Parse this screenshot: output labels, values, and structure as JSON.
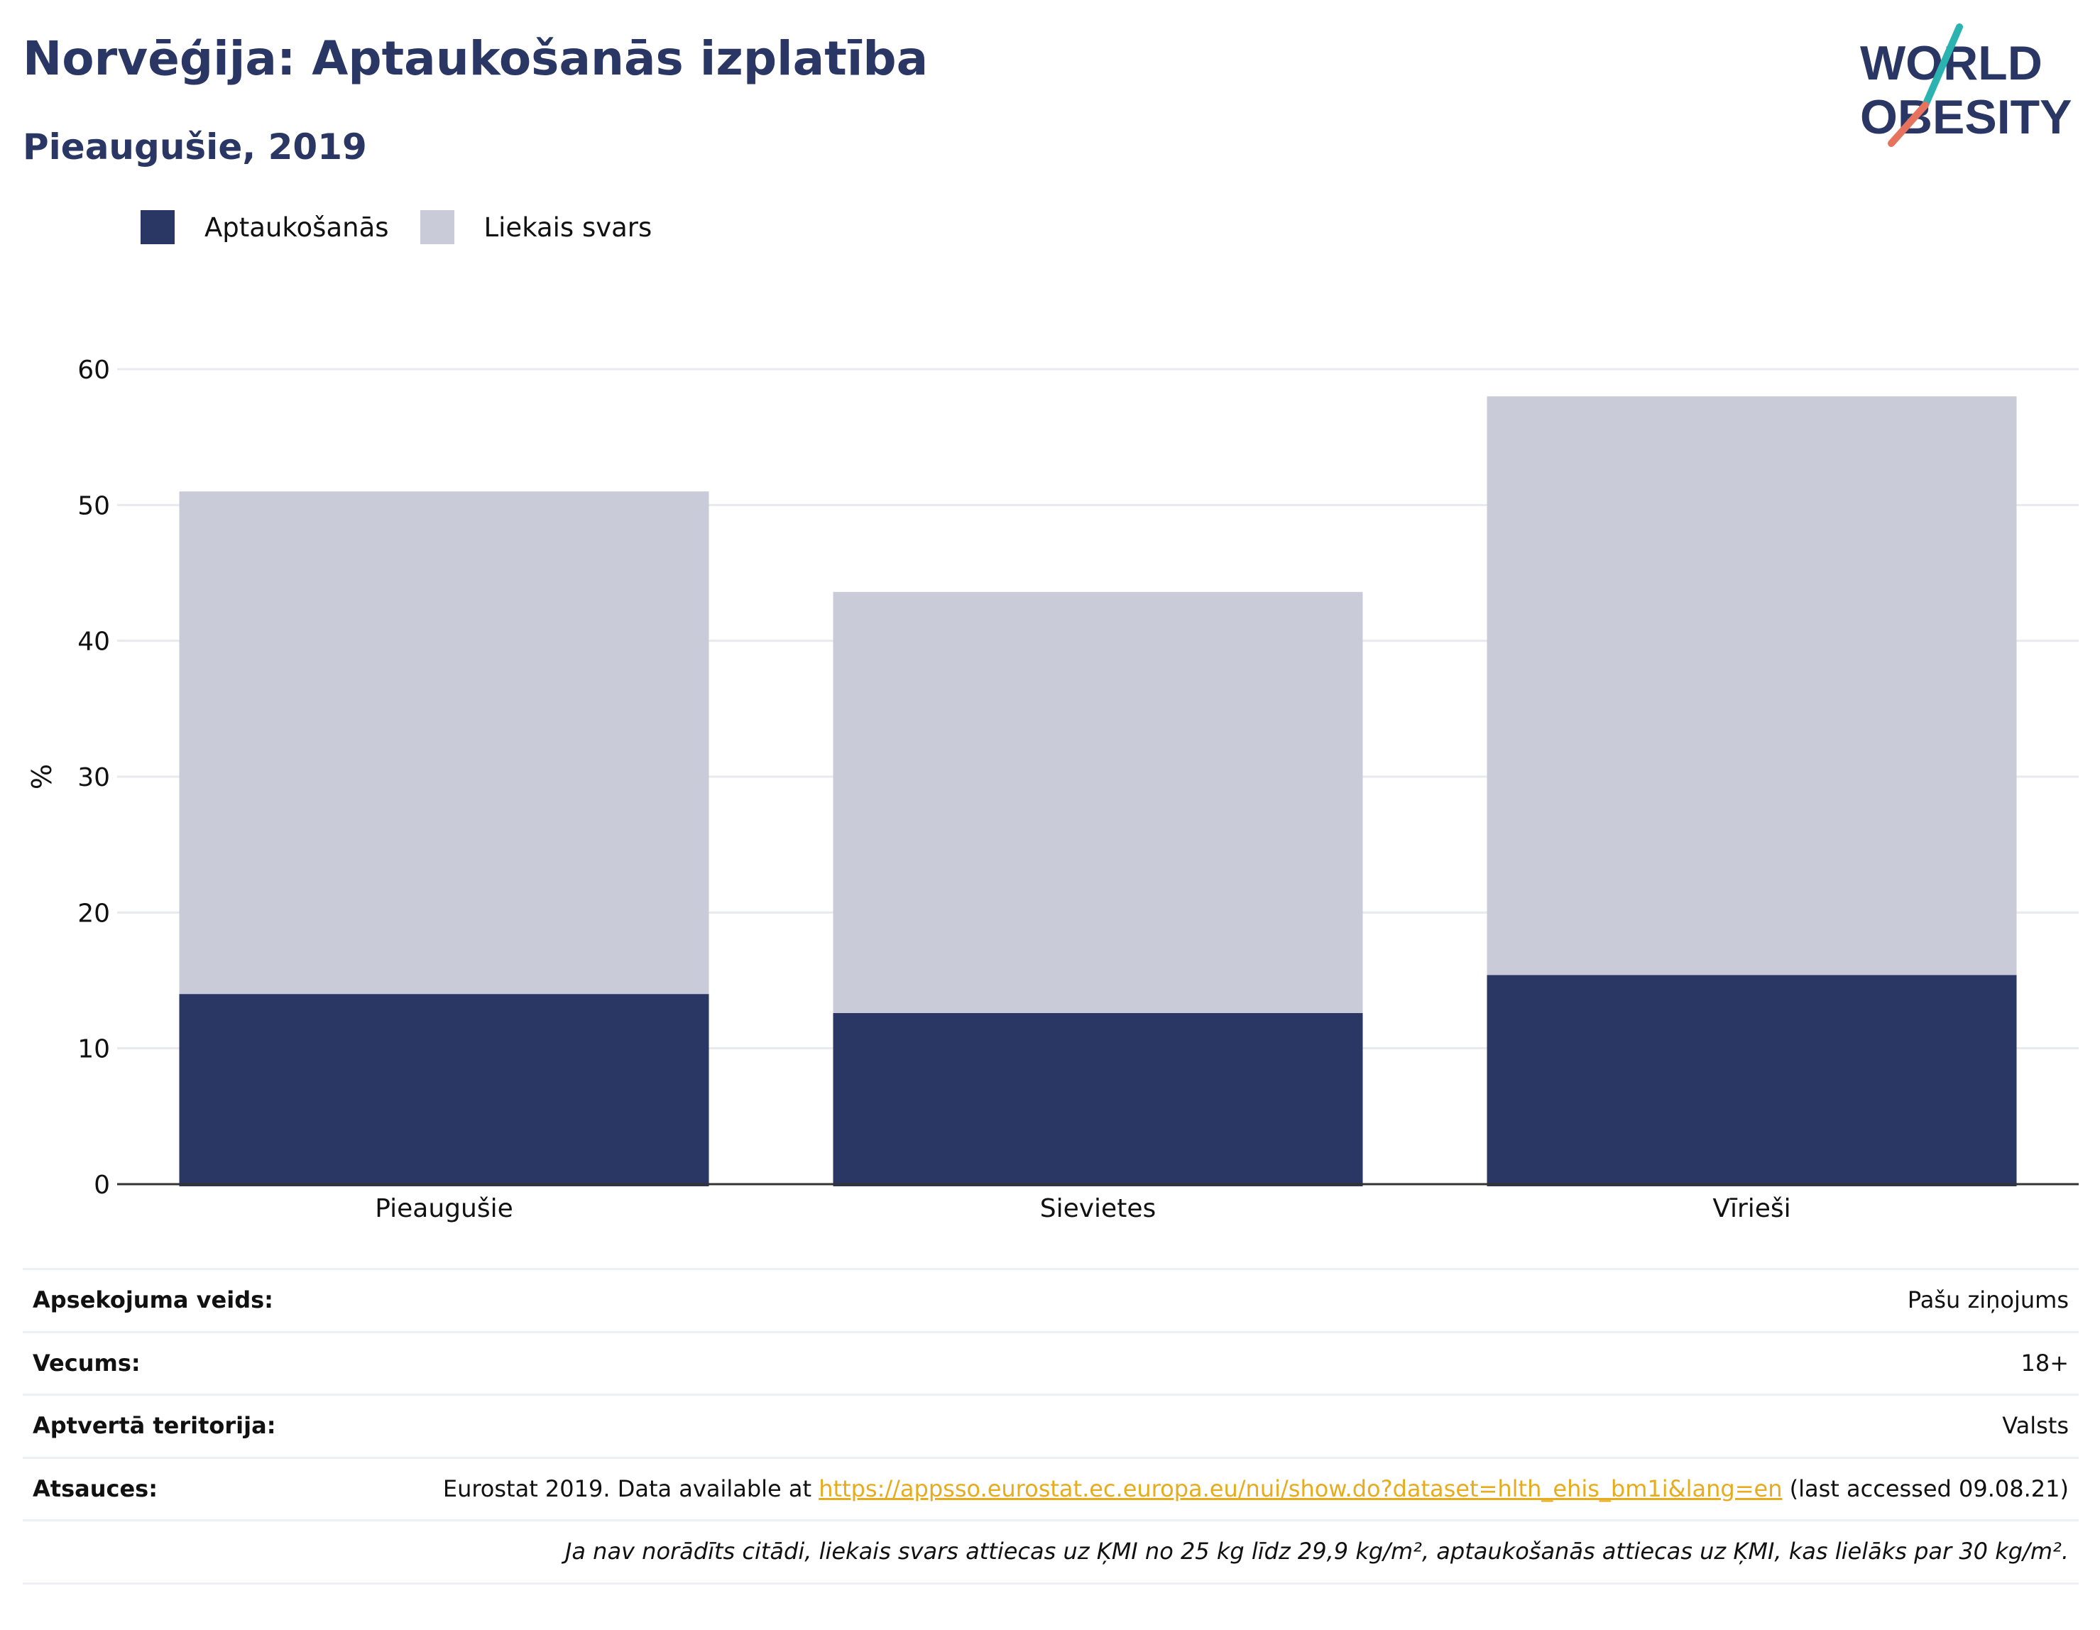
{
  "header": {
    "title": "Norvēģija: Aptaukošanās izplatība",
    "subtitle": "Pieaugušie, 2019"
  },
  "logo": {
    "line1": "WORLD",
    "line2": "OBESITY",
    "colors": {
      "text": "#2a3663",
      "slash_top": "#2bb3b1",
      "slash_bottom": "#e5735d"
    }
  },
  "legend": [
    {
      "label": "Aptaukošanās",
      "color": "#2a3663"
    },
    {
      "label": "Liekais svars",
      "color": "#c9ccd8"
    }
  ],
  "chart_data": {
    "type": "bar",
    "stacked": true,
    "categories": [
      "Pieaugušie",
      "Sievietes",
      "Vīrieši"
    ],
    "series": [
      {
        "name": "Aptaukošanās",
        "values": [
          14.0,
          12.6,
          15.4
        ],
        "color": "#2a3663"
      },
      {
        "name": "Liekais svars",
        "values": [
          37.0,
          31.0,
          42.6
        ],
        "color": "#c9ccd8"
      }
    ],
    "ylabel": "%",
    "ylim": [
      0,
      60
    ],
    "yticks": [
      0,
      10,
      20,
      30,
      40,
      50,
      60
    ],
    "grid": true,
    "legend_position": "top-left"
  },
  "info": {
    "rows": [
      {
        "key": "Apsekojuma veids:",
        "value": "Pašu ziņojums"
      },
      {
        "key": "Vecums:",
        "value": "18+"
      },
      {
        "key": "Aptvertā teritorija:",
        "value": "Valsts"
      }
    ],
    "sources": {
      "key": "Atsauces:",
      "prefix": "Eurostat 2019. Data available at ",
      "link": "https://appsso.eurostat.ec.europa.eu/nui/show.do?dataset=hlth_ehis_bm1i&lang=en",
      "suffix": " (last accessed 09.08.21)"
    },
    "note": "Ja nav norādīts citādi, liekais svars attiecas uz ĶMI no 25 kg līdz 29,9 kg/m², aptaukošanās attiecas uz ĶMI, kas lielāks par 30 kg/m²."
  }
}
